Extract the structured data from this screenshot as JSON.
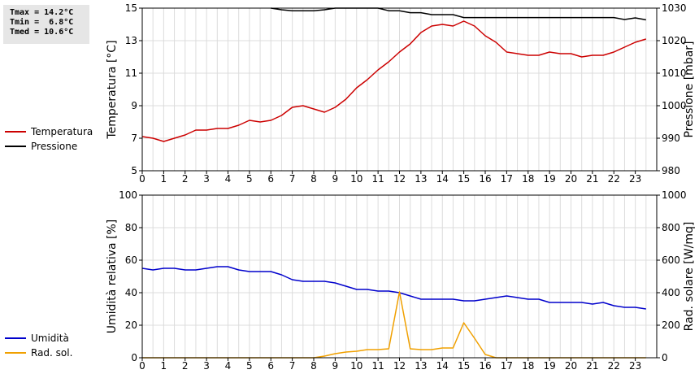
{
  "stats": {
    "tmax": "Tmax = 14.2°C",
    "tmin": "Tmin =  6.8°C",
    "tmed": "Tmed = 10.6°C"
  },
  "legend_top": [
    {
      "label": "Temperatura",
      "color": "#cc0000"
    },
    {
      "label": "Pressione",
      "color": "#000000"
    }
  ],
  "legend_bottom": [
    {
      "label": "Umidità",
      "color": "#0000cc"
    },
    {
      "label": "Rad. sol.",
      "color": "#f0a000"
    }
  ],
  "chart_data": [
    {
      "type": "line",
      "xlim": [
        0,
        24
      ],
      "x_ticks": [
        "0",
        "1",
        "2",
        "3",
        "4",
        "5",
        "6",
        "7",
        "8",
        "9",
        "10",
        "11",
        "12",
        "13",
        "14",
        "15",
        "16",
        "17",
        "18",
        "19",
        "20",
        "21",
        "22",
        "23"
      ],
      "ylabel": "Temperatura [°C]",
      "ylim": [
        5,
        15
      ],
      "y_ticks": [
        "5",
        "7",
        "9",
        "11",
        "13",
        "15"
      ],
      "ylabel_right": "Pressione [mbar]",
      "ylim_right": [
        980,
        1030
      ],
      "y_ticks_right": [
        "980",
        "990",
        "1000",
        "1010",
        "1020",
        "1030"
      ],
      "grid": true,
      "series": [
        {
          "name": "Temperatura",
          "axis": "left",
          "color": "#cc0000",
          "points": [
            [
              0,
              7.1
            ],
            [
              0.5,
              7.0
            ],
            [
              1,
              6.8
            ],
            [
              1.5,
              7.0
            ],
            [
              2,
              7.2
            ],
            [
              2.5,
              7.5
            ],
            [
              3,
              7.5
            ],
            [
              3.5,
              7.6
            ],
            [
              4,
              7.6
            ],
            [
              4.5,
              7.8
            ],
            [
              5,
              8.1
            ],
            [
              5.5,
              8.0
            ],
            [
              6,
              8.1
            ],
            [
              6.5,
              8.4
            ],
            [
              7,
              8.9
            ],
            [
              7.5,
              9.0
            ],
            [
              8,
              8.8
            ],
            [
              8.5,
              8.6
            ],
            [
              9,
              8.9
            ],
            [
              9.5,
              9.4
            ],
            [
              10,
              10.1
            ],
            [
              10.5,
              10.6
            ],
            [
              11,
              11.2
            ],
            [
              11.5,
              11.7
            ],
            [
              12,
              12.3
            ],
            [
              12.5,
              12.8
            ],
            [
              13,
              13.5
            ],
            [
              13.5,
              13.9
            ],
            [
              14,
              14.0
            ],
            [
              14.5,
              13.9
            ],
            [
              15,
              14.2
            ],
            [
              15.5,
              13.9
            ],
            [
              16,
              13.3
            ],
            [
              16.5,
              12.9
            ],
            [
              17,
              12.3
            ],
            [
              17.5,
              12.2
            ],
            [
              18,
              12.1
            ],
            [
              18.5,
              12.1
            ],
            [
              19,
              12.3
            ],
            [
              19.5,
              12.2
            ],
            [
              20,
              12.2
            ],
            [
              20.5,
              12.0
            ],
            [
              21,
              12.1
            ],
            [
              21.5,
              12.1
            ],
            [
              22,
              12.3
            ],
            [
              22.5,
              12.6
            ],
            [
              23,
              12.9
            ],
            [
              23.5,
              13.1
            ]
          ]
        },
        {
          "name": "Pressione",
          "axis": "right",
          "color": "#000000",
          "points": [
            [
              6,
              1030
            ],
            [
              6.5,
              1029.5
            ],
            [
              7,
              1029.2
            ],
            [
              7.5,
              1029.2
            ],
            [
              8,
              1029.2
            ],
            [
              8.5,
              1029.5
            ],
            [
              9,
              1030
            ],
            [
              10,
              1030
            ],
            [
              11,
              1030
            ],
            [
              11.5,
              1029.2
            ],
            [
              12,
              1029.2
            ],
            [
              12.5,
              1028.6
            ],
            [
              13,
              1028.6
            ],
            [
              13.5,
              1028
            ],
            [
              14,
              1028
            ],
            [
              14.5,
              1028
            ],
            [
              15,
              1027.1
            ],
            [
              16,
              1027.1
            ],
            [
              18,
              1027.1
            ],
            [
              20,
              1027.1
            ],
            [
              22,
              1027.1
            ],
            [
              22.5,
              1026.5
            ],
            [
              23,
              1027
            ],
            [
              23.5,
              1026.4
            ]
          ]
        }
      ]
    },
    {
      "type": "line",
      "xlim": [
        0,
        24
      ],
      "x_ticks": [
        "0",
        "1",
        "2",
        "3",
        "4",
        "5",
        "6",
        "7",
        "8",
        "9",
        "10",
        "11",
        "12",
        "13",
        "14",
        "15",
        "16",
        "17",
        "18",
        "19",
        "20",
        "21",
        "22",
        "23"
      ],
      "ylabel": "Umidità relativa [%]",
      "ylim": [
        0,
        100
      ],
      "y_ticks": [
        "0",
        "20",
        "40",
        "60",
        "80",
        "100"
      ],
      "ylabel_right": "Rad. solare [W/mq]",
      "ylim_right": [
        0,
        1000
      ],
      "y_ticks_right": [
        "0",
        "200",
        "400",
        "600",
        "800",
        "1000"
      ],
      "grid": true,
      "series": [
        {
          "name": "Umidità",
          "axis": "left",
          "color": "#0000cc",
          "points": [
            [
              0,
              55
            ],
            [
              0.5,
              54
            ],
            [
              1,
              55
            ],
            [
              1.5,
              55
            ],
            [
              2,
              54
            ],
            [
              2.5,
              54
            ],
            [
              3,
              55
            ],
            [
              3.5,
              56
            ],
            [
              4,
              56
            ],
            [
              4.5,
              54
            ],
            [
              5,
              53
            ],
            [
              5.5,
              53
            ],
            [
              6,
              53
            ],
            [
              6.5,
              51
            ],
            [
              7,
              48
            ],
            [
              7.5,
              47
            ],
            [
              8,
              47
            ],
            [
              8.5,
              47
            ],
            [
              9,
              46
            ],
            [
              9.5,
              44
            ],
            [
              10,
              42
            ],
            [
              10.5,
              42
            ],
            [
              11,
              41
            ],
            [
              11.5,
              41
            ],
            [
              12,
              40
            ],
            [
              12.5,
              38
            ],
            [
              13,
              36
            ],
            [
              13.5,
              36
            ],
            [
              14,
              36
            ],
            [
              14.5,
              36
            ],
            [
              15,
              35
            ],
            [
              15.5,
              35
            ],
            [
              16,
              36
            ],
            [
              16.5,
              37
            ],
            [
              17,
              38
            ],
            [
              17.5,
              37
            ],
            [
              18,
              36
            ],
            [
              18.5,
              36
            ],
            [
              19,
              34
            ],
            [
              19.5,
              34
            ],
            [
              20,
              34
            ],
            [
              20.5,
              34
            ],
            [
              21,
              33
            ],
            [
              21.5,
              34
            ],
            [
              22,
              32
            ],
            [
              22.5,
              31
            ],
            [
              23,
              31
            ],
            [
              23.5,
              30
            ]
          ]
        },
        {
          "name": "Rad. sol.",
          "axis": "right",
          "color": "#f0a000",
          "points": [
            [
              0,
              0
            ],
            [
              1,
              0
            ],
            [
              2,
              0
            ],
            [
              3,
              0
            ],
            [
              4,
              0
            ],
            [
              5,
              0
            ],
            [
              6,
              0
            ],
            [
              7,
              0
            ],
            [
              8,
              0
            ],
            [
              8.5,
              10
            ],
            [
              9,
              25
            ],
            [
              9.5,
              35
            ],
            [
              10,
              40
            ],
            [
              10.5,
              50
            ],
            [
              11,
              50
            ],
            [
              11.5,
              55
            ],
            [
              12,
              405
            ],
            [
              12.5,
              55
            ],
            [
              13,
              50
            ],
            [
              13.5,
              50
            ],
            [
              14,
              60
            ],
            [
              14.5,
              60
            ],
            [
              15,
              215
            ],
            [
              15.5,
              120
            ],
            [
              16,
              20
            ],
            [
              16.5,
              0
            ],
            [
              17,
              0
            ],
            [
              18,
              0
            ],
            [
              19,
              0
            ],
            [
              20,
              0
            ],
            [
              21,
              0
            ],
            [
              22,
              0
            ],
            [
              23,
              0
            ],
            [
              23.5,
              0
            ]
          ]
        }
      ]
    }
  ]
}
